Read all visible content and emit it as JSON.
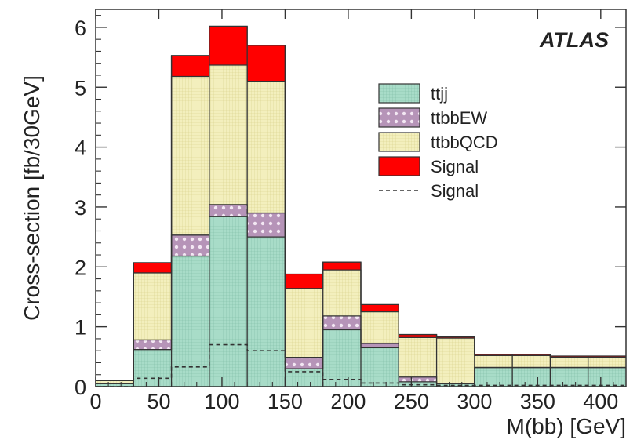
{
  "chart_data": {
    "type": "bar",
    "stacked": true,
    "x_label": "M(bb) [GeV]",
    "y_label": "Cross-section [fb/30GeV]",
    "xlim": [
      0,
      420
    ],
    "ylim": [
      0,
      6.3
    ],
    "x_ticks": [
      "0",
      "50",
      "100",
      "150",
      "200",
      "250",
      "300",
      "350",
      "400"
    ],
    "y_ticks": [
      "0",
      "1",
      "2",
      "3",
      "4",
      "5",
      "6"
    ],
    "experiment_tag": "ATLAS",
    "bin_edges": [
      0,
      30,
      60,
      90,
      120,
      150,
      180,
      210,
      240,
      270,
      300,
      330,
      360,
      390,
      420
    ],
    "series": [
      {
        "name": "ttjj",
        "color": "#a8dcc8",
        "fill": "grid",
        "values": [
          0.05,
          0.62,
          2.18,
          2.84,
          2.5,
          0.3,
          0.95,
          0.65,
          0.08,
          0.05,
          0.32,
          0.32,
          0.32,
          0.32
        ]
      },
      {
        "name": "ttbbEW",
        "color": "#b694b8",
        "fill": "dotted",
        "values": [
          0.0,
          0.16,
          0.35,
          0.2,
          0.4,
          0.19,
          0.23,
          0.07,
          0.08,
          0.0,
          0.0,
          0.0,
          0.0,
          0.0
        ]
      },
      {
        "name": "ttbbQCD",
        "color": "#f3efbd",
        "fill": "grid",
        "values": [
          0.05,
          1.12,
          2.65,
          2.33,
          2.2,
          1.15,
          0.77,
          0.53,
          0.66,
          0.76,
          0.2,
          0.2,
          0.17,
          0.17
        ]
      },
      {
        "name": "Signal",
        "color": "#ff0000",
        "fill": "solid",
        "values": [
          0.0,
          0.17,
          0.35,
          0.65,
          0.6,
          0.24,
          0.13,
          0.12,
          0.05,
          0.02,
          0.02,
          0.02,
          0.02,
          0.02
        ]
      }
    ],
    "signal_line": {
      "name": "Signal",
      "style": "dashed",
      "values": [
        0.0,
        0.14,
        0.33,
        0.7,
        0.6,
        0.25,
        0.12,
        0.06,
        0.03,
        0.02,
        0.02,
        0.02,
        0.02,
        0.02
      ]
    },
    "legend_position": "top-right"
  }
}
